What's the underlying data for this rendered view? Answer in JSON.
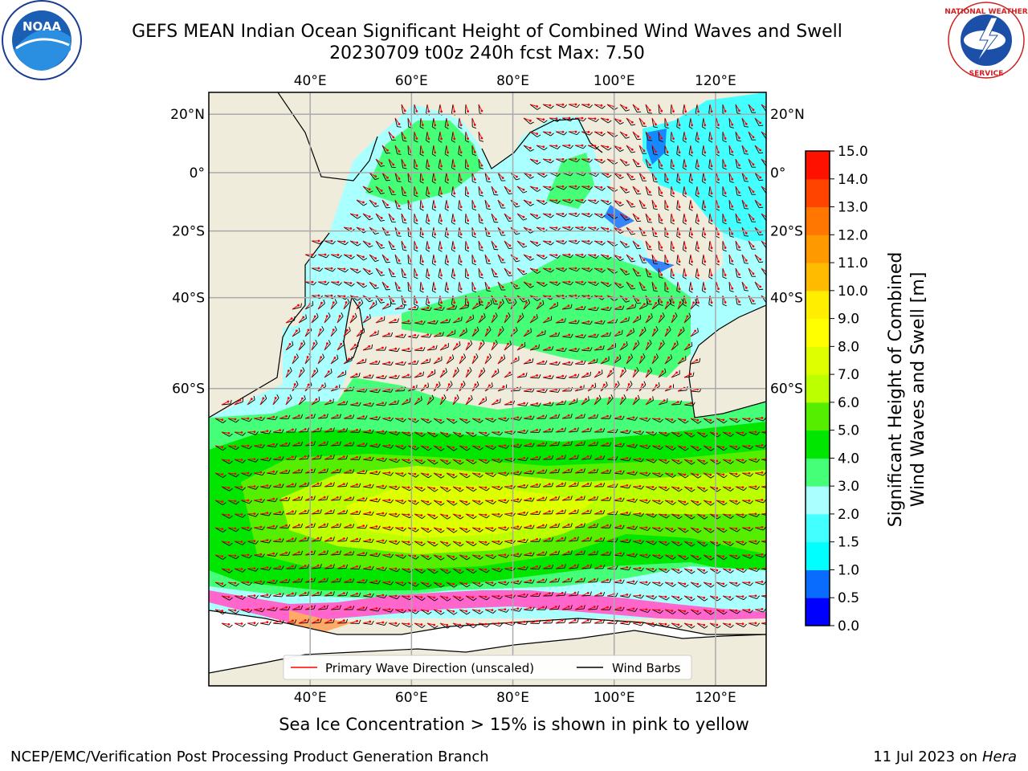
{
  "title": {
    "line1": "GEFS MEAN Indian Ocean Significant Height of Combined Wind Waves and Swell",
    "line2": "20230709 t00z 240h fcst   Max: 7.50"
  },
  "caption": "Sea Ice Concentration > 15% is shown in pink to yellow",
  "footer": {
    "left": "NCEP/EMC/Verification Post Processing Product Generation Branch",
    "date": "11 Jul 2023 on ",
    "machine": "Hera"
  },
  "logos": {
    "left_text": "NOAA",
    "right_ring_top": "NATIONAL WEATHER",
    "right_ring_bottom": "SERVICE"
  },
  "map": {
    "lon_range": [
      20,
      130
    ],
    "lat_range": [
      -85,
      27
    ],
    "lon_ticks": [
      "40°E",
      "60°E",
      "80°E",
      "100°E",
      "120°E"
    ],
    "lon_tick_values": [
      40,
      60,
      80,
      100,
      120
    ],
    "lat_ticks": [
      "20°N",
      "0°",
      "20°S",
      "40°S",
      "60°S"
    ],
    "lat_tick_values": [
      20,
      0,
      -20,
      -40,
      -60
    ],
    "grid": true,
    "legend": {
      "placement": "bottom-center",
      "entries": [
        {
          "label": "Primary Wave Direction (unscaled)",
          "color": "#ff0000"
        },
        {
          "label": "Wind Barbs",
          "color": "#000000"
        }
      ]
    }
  },
  "colorbar": {
    "label_line1": "Significant Height of Combined",
    "label_line2": "Wind Waves and Swell [m]",
    "ticks": [
      "0.0",
      "0.5",
      "1.0",
      "1.5",
      "2.0",
      "3.0",
      "4.0",
      "5.0",
      "6.0",
      "7.0",
      "8.0",
      "9.0",
      "10.0",
      "11.0",
      "12.0",
      "13.0",
      "14.0",
      "15.0"
    ],
    "colors": [
      "#0000ff",
      "#0a6cff",
      "#00ffff",
      "#44ffff",
      "#aaffff",
      "#44ff77",
      "#00e600",
      "#55ee00",
      "#bbff00",
      "#ddff00",
      "#ffff00",
      "#ffee00",
      "#ffbb00",
      "#ff9900",
      "#ff7700",
      "#ff4400",
      "#ff1100"
    ]
  },
  "colors": {
    "land": "#efecdc",
    "wave_arrow": "#ff0000",
    "barb": "#000000",
    "grid": "#aaaaaa"
  }
}
